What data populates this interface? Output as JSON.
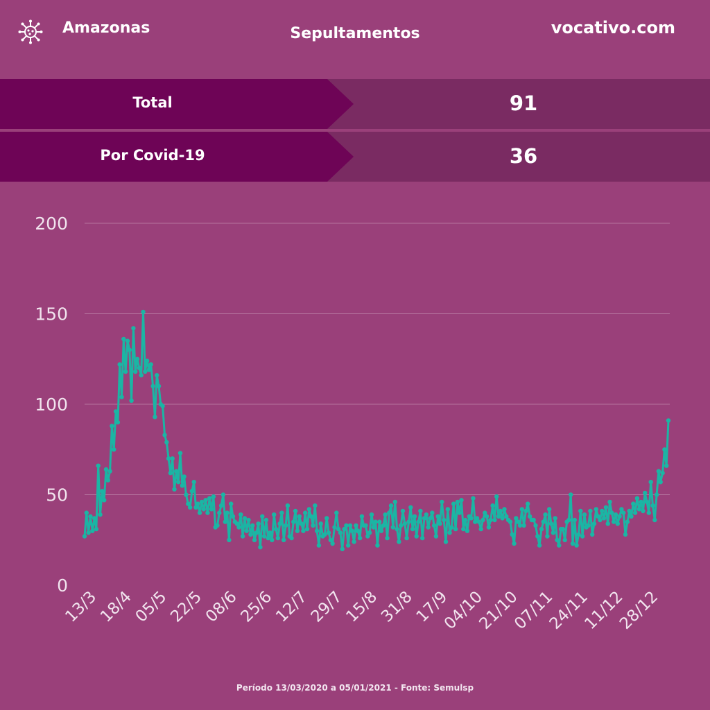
{
  "header": {
    "region": "Amazonas",
    "title": "Sepultamentos",
    "site": "vocativo.com",
    "icon": "virus-icon"
  },
  "stats": [
    {
      "label": "Total",
      "value": "91"
    },
    {
      "label": "Por Covid-19",
      "value": "36"
    }
  ],
  "footer": "Período 13/03/2020 a 05/01/2021 - Fonte: Semulsp",
  "colors": {
    "background": "#9a407a",
    "dark_panel": "#6e0456",
    "value_panel": "#7a2b62",
    "line": "#1bb5a4"
  },
  "chart_data": {
    "type": "line",
    "xlabel": "",
    "ylabel": "",
    "ylim": [
      0,
      200
    ],
    "yticks": [
      "0",
      "50",
      "100",
      "150",
      "200"
    ],
    "grid": true,
    "xtick_labels": [
      "13/3",
      "18/4",
      "05/5",
      "22/5",
      "08/6",
      "25/6",
      "12/7",
      "29/7",
      "15/8",
      "31/8",
      "17/9",
      "04/10",
      "21/10",
      "07/11",
      "24/11",
      "11/12",
      "28/12"
    ],
    "series": [
      {
        "values": [
          27,
          40,
          29,
          38,
          30,
          37,
          31,
          66,
          39,
          52,
          47,
          64,
          58,
          63,
          88,
          75,
          96,
          90,
          122,
          104,
          136,
          118,
          135,
          130,
          102,
          142,
          118,
          125,
          120,
          116,
          151,
          118,
          124,
          119,
          122,
          110,
          93,
          116,
          110,
          100,
          99,
          83,
          79,
          70,
          62,
          70,
          53,
          63,
          57,
          73,
          55,
          60,
          50,
          45,
          43,
          52,
          57,
          43,
          45,
          40,
          46,
          42,
          47,
          40,
          48,
          42,
          49,
          32,
          33,
          40,
          44,
          50,
          35,
          40,
          25,
          45,
          38,
          35,
          34,
          32,
          39,
          27,
          37,
          30,
          36,
          28,
          33,
          25,
          29,
          34,
          21,
          38,
          27,
          36,
          26,
          29,
          25,
          39,
          31,
          26,
          34,
          40,
          25,
          33,
          44,
          27,
          26,
          35,
          41,
          30,
          38,
          34,
          30,
          40,
          31,
          42,
          38,
          33,
          44,
          30,
          22,
          34,
          27,
          28,
          37,
          29,
          25,
          23,
          32,
          40,
          31,
          29,
          20,
          31,
          33,
          22,
          33,
          30,
          24,
          33,
          30,
          26,
          38,
          33,
          33,
          27,
          29,
          39,
          32,
          35,
          22,
          35,
          30,
          33,
          39,
          26,
          40,
          44,
          32,
          46,
          31,
          24,
          33,
          41,
          34,
          26,
          35,
          43,
          31,
          38,
          27,
          35,
          41,
          26,
          37,
          39,
          32,
          37,
          40,
          33,
          27,
          38,
          34,
          46,
          36,
          24,
          42,
          29,
          32,
          45,
          31,
          46,
          40,
          47,
          31,
          36,
          30,
          38,
          37,
          48,
          35,
          37,
          35,
          31,
          36,
          40,
          38,
          32,
          36,
          44,
          36,
          49,
          38,
          41,
          37,
          42,
          38,
          36,
          35,
          28,
          23,
          37,
          35,
          33,
          42,
          33,
          41,
          45,
          38,
          36,
          36,
          33,
          27,
          22,
          31,
          35,
          39,
          27,
          42,
          34,
          29,
          37,
          25,
          22,
          31,
          31,
          25,
          35,
          36,
          50,
          23,
          36,
          22,
          28,
          41,
          27,
          39,
          32,
          33,
          41,
          28,
          34,
          42,
          38,
          36,
          41,
          37,
          43,
          34,
          46,
          40,
          35,
          39,
          34,
          38,
          42,
          40,
          28,
          35,
          41,
          38,
          45,
          40,
          48,
          42,
          46,
          41,
          51,
          46,
          40,
          57,
          44,
          36,
          50,
          63,
          57,
          62,
          75,
          66,
          91
        ]
      }
    ]
  }
}
